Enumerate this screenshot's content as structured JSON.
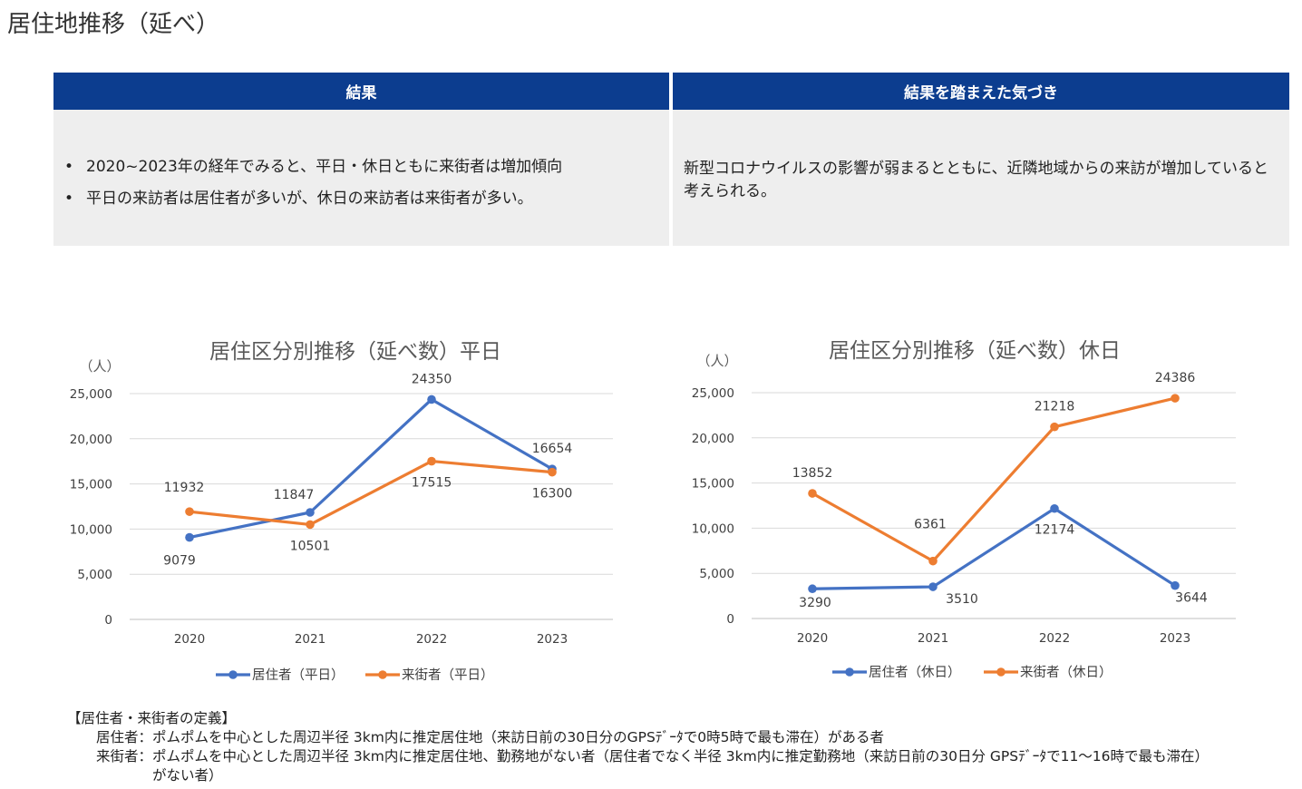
{
  "page_title": "居住地推移（延べ）",
  "panels": {
    "result_header": "結果",
    "insight_header": "結果を踏まえた気づき",
    "result_bullets": [
      "2020~2023年の経年でみると、平日・休日ともに来街者は増加傾向",
      "平日の来訪者は居住者が多いが、休日の来訪者は来街者が多い。"
    ],
    "insight_text": "新型コロナウイルスの影響が弱まるとともに、近隣地域からの来訪が増加していると考えられる。"
  },
  "chart_data": [
    {
      "type": "line",
      "title": "居住区分別推移（延べ数）平日",
      "ylabel": "（人）",
      "xlabel": "",
      "categories": [
        "2020",
        "2021",
        "2022",
        "2023"
      ],
      "ylim": [
        0,
        25000
      ],
      "yticks": [
        0,
        5000,
        10000,
        15000,
        20000,
        25000
      ],
      "ytick_labels": [
        "0",
        "5,000",
        "10,000",
        "15,000",
        "20,000",
        "25,000"
      ],
      "grid": true,
      "legend": "bottom",
      "series": [
        {
          "name": "居住者（平日）",
          "color": "#4472c4",
          "values": [
            9079,
            11847,
            24350,
            16654
          ],
          "labels": [
            "9079",
            "11847",
            "24350",
            "16654"
          ]
        },
        {
          "name": "来街者（平日）",
          "color": "#ed7d31",
          "values": [
            11932,
            10501,
            17515,
            16300
          ],
          "labels": [
            "11932",
            "10501",
            "17515",
            "16300"
          ]
        }
      ]
    },
    {
      "type": "line",
      "title": "居住区分別推移（延べ数）休日",
      "ylabel": "（人）",
      "xlabel": "",
      "categories": [
        "2020",
        "2021",
        "2022",
        "2023"
      ],
      "ylim": [
        0,
        25000
      ],
      "yticks": [
        0,
        5000,
        10000,
        15000,
        20000,
        25000
      ],
      "ytick_labels": [
        "0",
        "5,000",
        "10,000",
        "15,000",
        "20,000",
        "25,000"
      ],
      "grid": true,
      "legend": "bottom",
      "series": [
        {
          "name": "居住者（休日）",
          "color": "#4472c4",
          "values": [
            3290,
            3510,
            12174,
            3644
          ],
          "labels": [
            "3290",
            "3510",
            "12174",
            "3644"
          ]
        },
        {
          "name": "来街者（休日）",
          "color": "#ed7d31",
          "values": [
            13852,
            6361,
            21218,
            24386
          ],
          "labels": [
            "13852",
            "6361",
            "21218",
            "24386"
          ]
        }
      ]
    }
  ],
  "definitions": {
    "heading": "【居住者・来街者の定義】",
    "resident_label": "居住者：",
    "resident_text": "ポムポムを中心とした周辺半径 3km内に推定居住地（来訪日前の30日分のGPSﾃﾞｰﾀで0時5時で最も滞在）がある者",
    "visitor_label": "来街者：",
    "visitor_text": "ポムポムを中心とした周辺半径 3km内に推定居住地、勤務地がない者（居住者でなく半径 3km内に推定勤務地（来訪日前の30日分 GPSﾃﾞｰﾀで11～16時で最も滞在）がない者）"
  }
}
